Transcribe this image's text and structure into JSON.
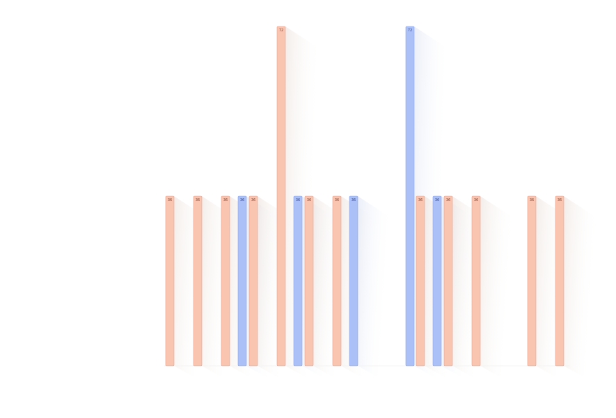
{
  "chart_data": {
    "type": "bar",
    "title": "",
    "xlabel": "",
    "ylabel": "",
    "ylim": [
      0,
      72
    ],
    "grid": false,
    "legend": "none",
    "value_labels_visible": true,
    "tick_labels_legible": false,
    "colors": {
      "warm": "#f9c4b0",
      "warm_edge": "#e8a48d",
      "cool": "#abc0f7",
      "cool_edge": "#8ea6ec"
    },
    "bars": [
      {
        "slot": 0,
        "value": 36,
        "label": "36",
        "color": "warm"
      },
      {
        "slot": 2,
        "value": 36,
        "label": "36",
        "color": "warm"
      },
      {
        "slot": 4,
        "value": 36,
        "label": "36",
        "color": "warm"
      },
      {
        "slot": 5.2,
        "value": 36,
        "label": "36",
        "color": "cool"
      },
      {
        "slot": 6,
        "value": 36,
        "label": "36",
        "color": "warm"
      },
      {
        "slot": 8,
        "value": 72,
        "label": "72",
        "color": "warm"
      },
      {
        "slot": 9.2,
        "value": 36,
        "label": "36",
        "color": "cool"
      },
      {
        "slot": 10,
        "value": 36,
        "label": "36",
        "color": "warm"
      },
      {
        "slot": 12,
        "value": 36,
        "label": "36",
        "color": "warm"
      },
      {
        "slot": 13.2,
        "value": 36,
        "label": "36",
        "color": "cool"
      },
      {
        "slot": 17.25,
        "value": 72,
        "label": "72",
        "color": "cool"
      },
      {
        "slot": 18,
        "value": 36,
        "label": "36",
        "color": "warm"
      },
      {
        "slot": 19.2,
        "value": 36,
        "label": "36",
        "color": "cool"
      },
      {
        "slot": 20,
        "value": 36,
        "label": "36",
        "color": "warm"
      },
      {
        "slot": 22,
        "value": 36,
        "label": "36",
        "color": "warm"
      },
      {
        "slot": 26,
        "value": 36,
        "label": "36",
        "color": "warm"
      },
      {
        "slot": 28,
        "value": 36,
        "label": "36",
        "color": "warm"
      }
    ]
  }
}
